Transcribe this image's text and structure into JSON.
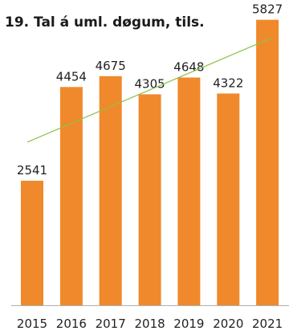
{
  "chart_data": {
    "type": "bar",
    "title": "19. Tal á uml. døgum, tils.",
    "xlabel": "",
    "ylabel": "",
    "categories": [
      "2015",
      "2016",
      "2017",
      "2018",
      "2019",
      "2020",
      "2021"
    ],
    "values": [
      2541,
      4454,
      4675,
      4305,
      4648,
      4322,
      5827
    ],
    "ylim": [
      0,
      6000
    ],
    "grid": false,
    "legend": "none",
    "trendline": {
      "type": "linear",
      "color": "#8bc34a"
    },
    "bar_color": "#f0892b",
    "axis_color": "#b0b0b0"
  }
}
